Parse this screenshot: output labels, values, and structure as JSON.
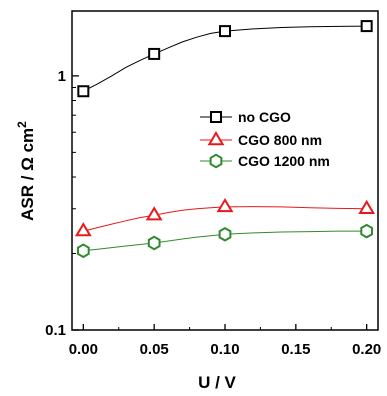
{
  "chart_data": {
    "type": "line",
    "title": "",
    "xlabel": "U / V",
    "ylabel_main": "ASR / Ω cm",
    "ylabel_sup": "2",
    "x_ticks": [
      0.0,
      0.05,
      0.1,
      0.15,
      0.2
    ],
    "x_tick_labels": [
      "0.00",
      "0.05",
      "0.10",
      "0.15",
      "0.20"
    ],
    "xlim": [
      -0.008,
      0.208
    ],
    "y_scale": "log",
    "ylim": [
      0.1,
      1.8
    ],
    "y_major_ticks": [
      0.1,
      1
    ],
    "y_tick_labels": [
      "0.1",
      "1"
    ],
    "y_minor_ticks": [
      0.2,
      0.3,
      0.4,
      0.5,
      0.6,
      0.7,
      0.8,
      0.9
    ],
    "legend_position": "center-right",
    "series": [
      {
        "name": "no CGO",
        "color": "#000000",
        "marker": "square",
        "x": [
          0.0,
          0.05,
          0.1,
          0.2
        ],
        "y": [
          0.87,
          1.22,
          1.5,
          1.57
        ],
        "curve_x": [
          0.0,
          0.01,
          0.02,
          0.03,
          0.04,
          0.05,
          0.06,
          0.07,
          0.08,
          0.09,
          0.1,
          0.12,
          0.14,
          0.16,
          0.18,
          0.2
        ],
        "curve_y": [
          0.87,
          0.93,
          1.0,
          1.08,
          1.15,
          1.22,
          1.29,
          1.36,
          1.42,
          1.47,
          1.5,
          1.53,
          1.55,
          1.56,
          1.565,
          1.57
        ]
      },
      {
        "name": "CGO 800 nm",
        "color": "#e8191c",
        "marker": "triangle",
        "x": [
          0.0,
          0.05,
          0.1,
          0.2
        ],
        "y": [
          0.245,
          0.283,
          0.305,
          0.3
        ],
        "curve_x": [
          0.0,
          0.01,
          0.02,
          0.03,
          0.04,
          0.05,
          0.06,
          0.07,
          0.08,
          0.09,
          0.1,
          0.12,
          0.14,
          0.16,
          0.18,
          0.2
        ],
        "curve_y": [
          0.245,
          0.253,
          0.261,
          0.269,
          0.277,
          0.283,
          0.29,
          0.296,
          0.3,
          0.303,
          0.305,
          0.306,
          0.305,
          0.303,
          0.301,
          0.3
        ]
      },
      {
        "name": "CGO 1200 nm",
        "color": "#2f8a2f",
        "marker": "hexagon",
        "x": [
          0.0,
          0.05,
          0.1,
          0.2
        ],
        "y": [
          0.205,
          0.22,
          0.238,
          0.245
        ],
        "curve_x": [
          0.0,
          0.01,
          0.02,
          0.03,
          0.04,
          0.05,
          0.06,
          0.07,
          0.08,
          0.09,
          0.1,
          0.12,
          0.14,
          0.16,
          0.18,
          0.2
        ],
        "curve_y": [
          0.205,
          0.208,
          0.211,
          0.214,
          0.217,
          0.22,
          0.224,
          0.228,
          0.232,
          0.235,
          0.238,
          0.241,
          0.243,
          0.244,
          0.245,
          0.245
        ]
      }
    ]
  }
}
